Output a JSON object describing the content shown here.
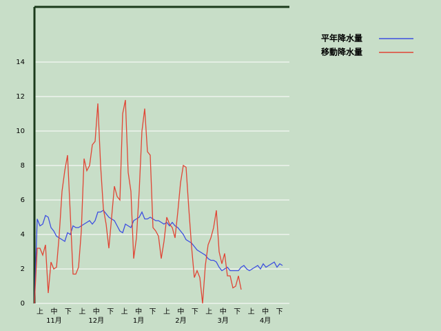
{
  "chart_data": {
    "type": "line",
    "dekads": [
      "上",
      "中",
      "下",
      "上",
      "中",
      "下",
      "上",
      "中",
      "下",
      "上",
      "中",
      "下",
      "上",
      "中",
      "下",
      "上",
      "中",
      "下"
    ],
    "months": [
      "11月",
      "12月",
      "1月",
      "2月",
      "3月",
      "4月"
    ],
    "ylim": [
      0,
      17.2
    ],
    "yticks": [
      0,
      2,
      4,
      6,
      8,
      10,
      12,
      14
    ],
    "grid": true,
    "series": [
      {
        "name": "平年降水量",
        "color": "#3c4ee0",
        "values": [
          0,
          4.9,
          4.5,
          4.6,
          5.1,
          5.0,
          4.4,
          4.2,
          3.9,
          3.8,
          3.7,
          3.6,
          4.1,
          4.0,
          4.5,
          4.4,
          4.4,
          4.5,
          4.6,
          4.7,
          4.8,
          4.6,
          4.8,
          5.3,
          5.3,
          5.4,
          5.2,
          5.0,
          4.9,
          4.8,
          4.5,
          4.2,
          4.1,
          4.6,
          4.5,
          4.4,
          4.8,
          4.9,
          5.0,
          5.3,
          4.9,
          4.9,
          5.0,
          4.9,
          4.8,
          4.8,
          4.7,
          4.6,
          4.7,
          4.5,
          4.7,
          4.5,
          4.4,
          4.2,
          4.0,
          3.7,
          3.6,
          3.5,
          3.3,
          3.1,
          3.0,
          2.9,
          2.8,
          2.6,
          2.5,
          2.5,
          2.4,
          2.1,
          1.9,
          2.0,
          2.1,
          1.9,
          1.9,
          1.9,
          1.9,
          2.1,
          2.2,
          2.0,
          1.9,
          2.0,
          2.1,
          2.2,
          2.0,
          2.3,
          2.1,
          2.2,
          2.3,
          2.4,
          2.1,
          2.3,
          2.2
        ]
      },
      {
        "name": "移動降水量",
        "color": "#e04434",
        "values": [
          0,
          3.2,
          3.2,
          2.8,
          3.4,
          0.6,
          2.4,
          2.0,
          2.1,
          4.0,
          6.5,
          7.7,
          8.6,
          5.2,
          1.7,
          1.7,
          2.1,
          4.2,
          8.4,
          7.7,
          8.0,
          9.2,
          9.4,
          11.6,
          8.0,
          5.5,
          4.6,
          3.2,
          5.0,
          6.8,
          6.2,
          6.0,
          11.0,
          11.8,
          7.6,
          6.5,
          2.6,
          3.8,
          6.5,
          10.0,
          11.3,
          8.8,
          8.6,
          4.4,
          4.2,
          3.9,
          2.6,
          3.6,
          5.0,
          4.6,
          4.4,
          3.8,
          5.3,
          7.0,
          8.0,
          7.9,
          5.5,
          3.3,
          1.5,
          1.9,
          1.5,
          0,
          2.2,
          3.4,
          3.8,
          4.4,
          5.4,
          3.0,
          2.3,
          2.9,
          1.6,
          1.6,
          0.9,
          1.0,
          1.6,
          0.8,
          null,
          null,
          null,
          null,
          null,
          null,
          null,
          null,
          null,
          null,
          null,
          null,
          null,
          null,
          null
        ]
      }
    ]
  }
}
